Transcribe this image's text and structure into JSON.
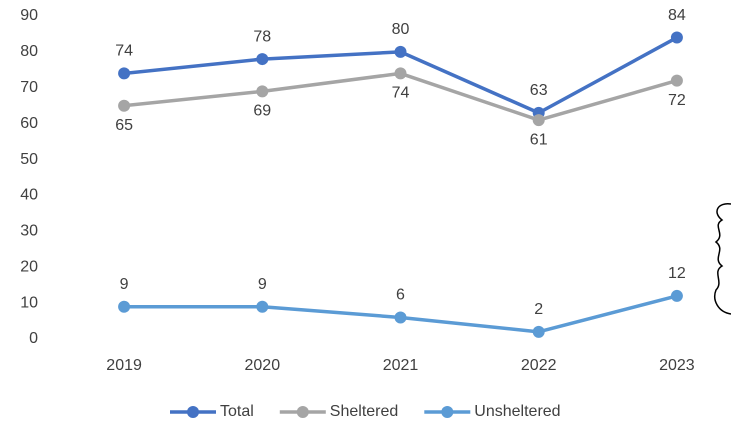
{
  "chart_data": {
    "type": "line",
    "categories": [
      "2019",
      "2020",
      "2021",
      "2022",
      "2023"
    ],
    "series": [
      {
        "name": "Total",
        "color": "#4472c4",
        "values": [
          74,
          78,
          80,
          63,
          84
        ]
      },
      {
        "name": "Sheltered",
        "color": "#a5a5a5",
        "values": [
          65,
          69,
          74,
          61,
          72
        ]
      },
      {
        "name": "Unsheltered",
        "color": "#5b9bd5",
        "values": [
          9,
          9,
          6,
          2,
          12
        ]
      }
    ],
    "ylim": [
      0,
      90
    ],
    "yticks": [
      0,
      10,
      20,
      30,
      40,
      50,
      60,
      70,
      80,
      90
    ],
    "grid": false,
    "legend": "bottom"
  }
}
